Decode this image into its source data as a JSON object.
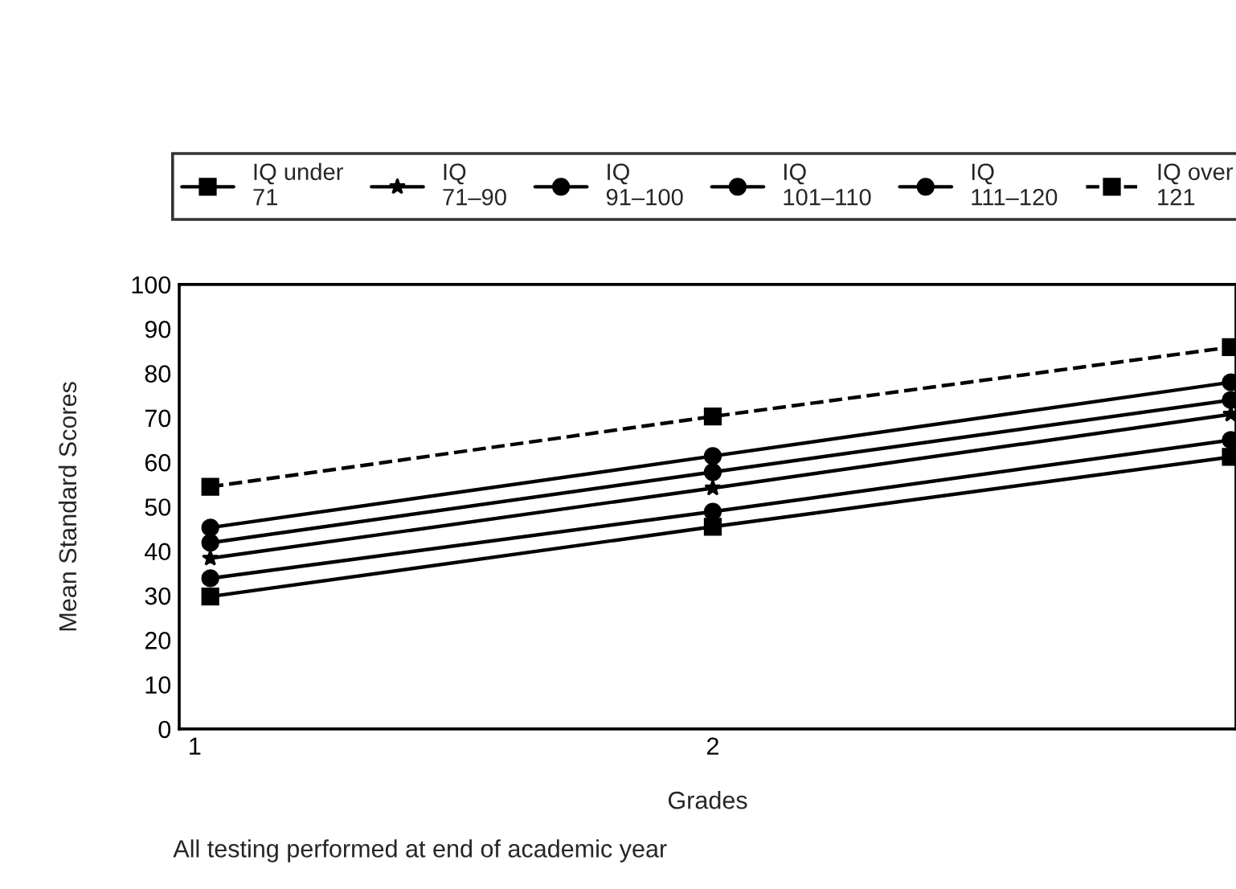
{
  "chart_data": {
    "type": "line",
    "xlabel": "Grades",
    "ylabel": "Mean Standard Scores",
    "x": [
      1.03,
      2,
      3
    ],
    "xlim": [
      0.97,
      3.01
    ],
    "xticks": [
      1,
      2
    ],
    "ylim": [
      0,
      100
    ],
    "yticks": [
      0,
      10,
      20,
      30,
      40,
      50,
      60,
      70,
      80,
      90,
      100
    ],
    "series": [
      {
        "name": "IQ under\n71",
        "color": "#000000",
        "marker": "square",
        "line_style": "solid",
        "values": [
          29.8,
          45.5,
          61.2
        ]
      },
      {
        "name": "IQ\n71–90",
        "color": "#000000",
        "marker": "star",
        "line_style": "solid",
        "values": [
          38.4,
          54.2,
          70.8
        ]
      },
      {
        "name": "IQ\n91–100",
        "color": "#000000",
        "marker": "circle",
        "line_style": "solid",
        "values": [
          33.9,
          48.9,
          65
        ]
      },
      {
        "name": "IQ\n101–110",
        "color": "#000000",
        "marker": "circle",
        "line_style": "solid",
        "values": [
          41.9,
          57.8,
          74
        ]
      },
      {
        "name": "IQ\n111–120",
        "color": "#000000",
        "marker": "circle",
        "line_style": "solid",
        "values": [
          45.3,
          61.4,
          78
        ]
      },
      {
        "name": "IQ over\n121",
        "color": "#000000",
        "marker": "square",
        "line_style": "dashed",
        "values": [
          54.5,
          70.3,
          85.9
        ]
      }
    ],
    "legend": "top",
    "grid": false,
    "annotations": [
      "All testing performed at end of academic year"
    ]
  }
}
